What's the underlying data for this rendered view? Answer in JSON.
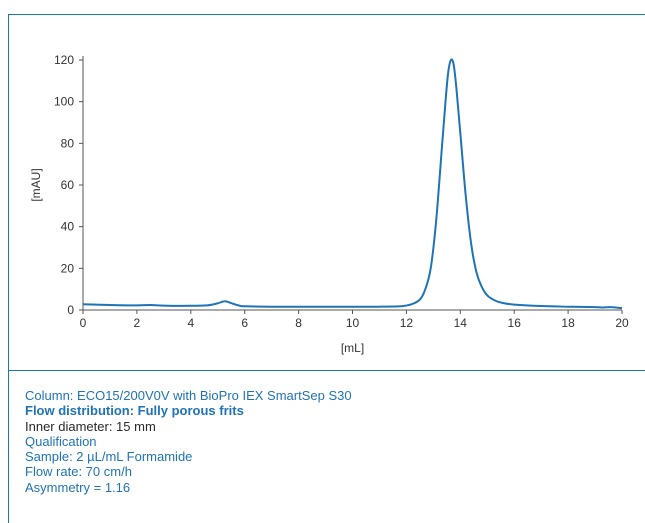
{
  "chart_data": {
    "type": "line",
    "xlabel": "[mL]",
    "ylabel": "[mAU]",
    "xlim": [
      0,
      20
    ],
    "ylim": [
      0,
      120
    ],
    "xticks": [
      0,
      2,
      4,
      6,
      8,
      10,
      12,
      14,
      16,
      18,
      20
    ],
    "yticks": [
      0,
      20,
      40,
      60,
      80,
      100,
      120
    ],
    "grid": false,
    "line_color": "#1f73b7",
    "series": [
      {
        "points": [
          [
            0,
            2.8
          ],
          [
            1,
            2.4
          ],
          [
            2,
            2.2
          ],
          [
            2.5,
            2.4
          ],
          [
            3,
            2.1
          ],
          [
            4,
            2.0
          ],
          [
            4.6,
            2.2
          ],
          [
            5.0,
            3.2
          ],
          [
            5.25,
            4.2
          ],
          [
            5.5,
            3.3
          ],
          [
            5.8,
            2.1
          ],
          [
            6,
            1.8
          ],
          [
            7,
            1.6
          ],
          [
            8,
            1.6
          ],
          [
            9,
            1.6
          ],
          [
            10,
            1.6
          ],
          [
            11,
            1.6
          ],
          [
            11.8,
            1.8
          ],
          [
            12.2,
            2.8
          ],
          [
            12.5,
            5
          ],
          [
            12.7,
            10
          ],
          [
            12.9,
            20
          ],
          [
            13.1,
            42
          ],
          [
            13.3,
            75
          ],
          [
            13.45,
            100
          ],
          [
            13.55,
            114
          ],
          [
            13.65,
            120
          ],
          [
            13.75,
            118
          ],
          [
            13.85,
            107
          ],
          [
            14.0,
            85
          ],
          [
            14.2,
            55
          ],
          [
            14.4,
            32
          ],
          [
            14.6,
            18
          ],
          [
            14.8,
            11
          ],
          [
            15.0,
            7
          ],
          [
            15.3,
            4.5
          ],
          [
            15.6,
            3.3
          ],
          [
            16,
            2.6
          ],
          [
            17,
            1.9
          ],
          [
            18,
            1.6
          ],
          [
            19,
            1.4
          ],
          [
            19.3,
            1.2
          ],
          [
            19.6,
            1.4
          ],
          [
            20,
            0.8
          ]
        ]
      }
    ]
  },
  "caption": {
    "lines": [
      "Column: ECO15/200V0V with BioPro IEX SmartSep S30",
      "Flow distribution: Fully porous frits",
      "Inner diameter: 15 mm",
      "Qualification",
      "Sample: 2 µL/mL Formamide",
      "Flow rate: 70 cm/h",
      "Asymmetry = 1.16"
    ]
  }
}
